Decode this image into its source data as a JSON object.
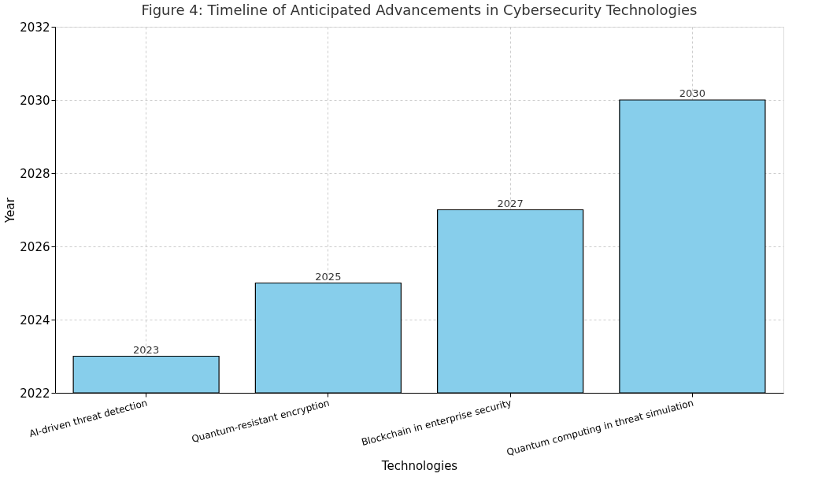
{
  "chart_data": {
    "type": "bar",
    "title": "Figure 4: Timeline of Anticipated Advancements in Cybersecurity Technologies",
    "xlabel": "Technologies",
    "ylabel": "Year",
    "categories": [
      "AI-driven threat detection",
      "Quantum-resistant encryption",
      "Blockchain in enterprise security",
      "Quantum computing in threat simulation"
    ],
    "values": [
      2023,
      2025,
      2027,
      2030
    ],
    "color": "#87ceeb",
    "ylim": [
      2022,
      2032
    ],
    "yticks": [
      2022,
      2024,
      2026,
      2028,
      2030,
      2032
    ],
    "grid": true,
    "data_labels": true
  }
}
